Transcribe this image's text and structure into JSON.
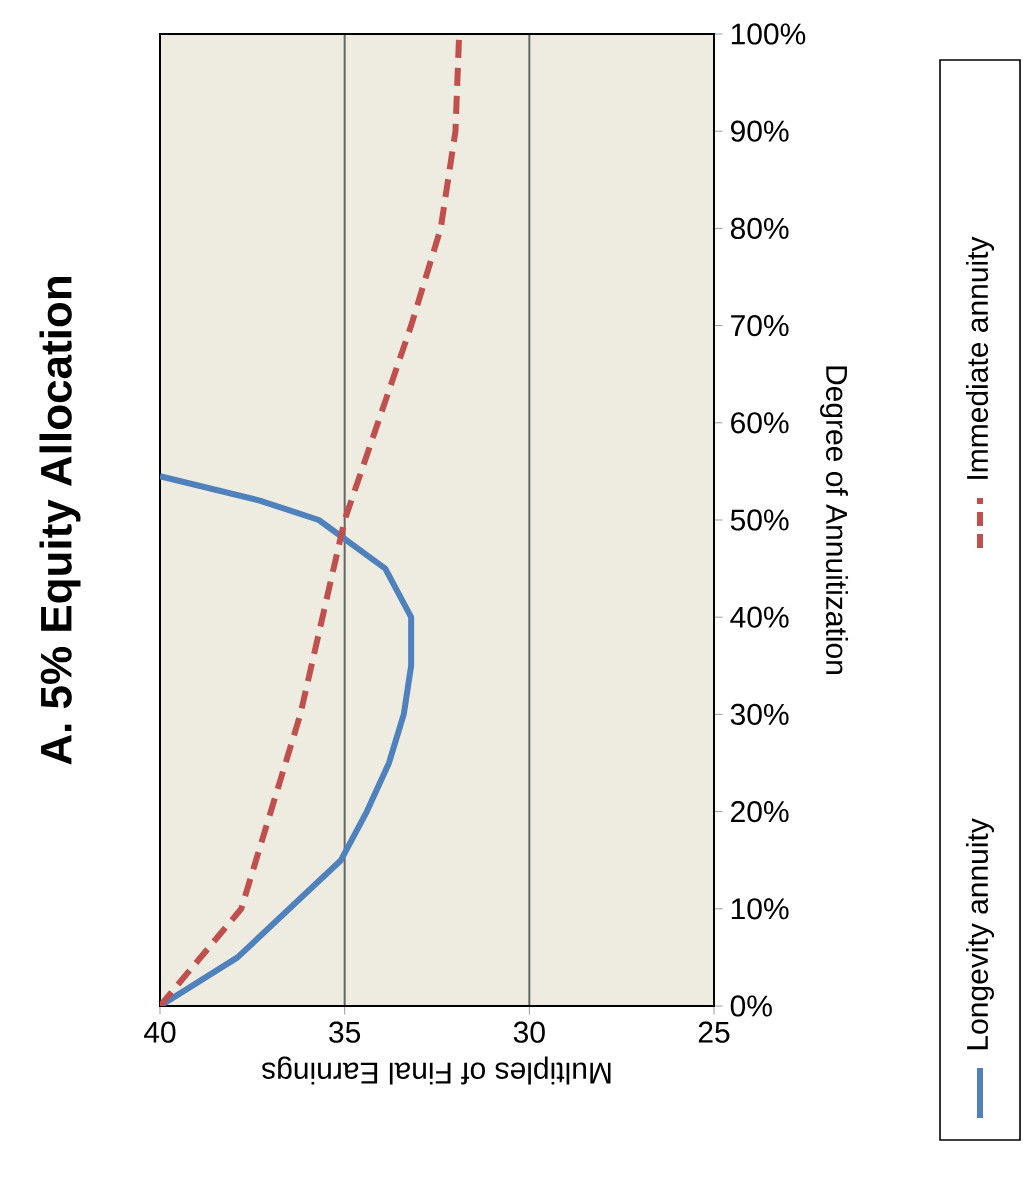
{
  "chart_data": {
    "type": "line",
    "title": "A. 5% Equity Allocation",
    "xlabel": "Multiples of Final Earnings",
    "ylabel": "Degree of Annuitization",
    "series": [
      {
        "name": "Longevity annuity",
        "color": "#4f81bd",
        "line_style": "solid",
        "x": [
          40,
          37.9,
          36.5,
          35.1,
          34.4,
          33.8,
          33.4,
          33.2,
          33.2,
          33.9,
          35.7,
          37.3,
          40
        ],
        "values": [
          0,
          5,
          10,
          15,
          20,
          25,
          30,
          35,
          40,
          45,
          50,
          52,
          54.5
        ]
      },
      {
        "name": "Immediate annuity",
        "color": "#c0504d",
        "line_style": "dashed",
        "x": [
          40,
          37.8,
          37.0,
          36.2,
          35.6,
          35.0,
          34.1,
          33.2,
          32.4,
          32.0,
          31.9
        ],
        "values": [
          0,
          10,
          20,
          30,
          40,
          50,
          60,
          70,
          80,
          90,
          100
        ]
      }
    ],
    "xlim": [
      40,
      25
    ],
    "ylim": [
      0,
      100
    ],
    "xticks": [
      25,
      30,
      35,
      40
    ],
    "yticks": [
      {
        "value": 0,
        "label": "0%"
      },
      {
        "value": 10,
        "label": "10%"
      },
      {
        "value": 20,
        "label": "20%"
      },
      {
        "value": 30,
        "label": "30%"
      },
      {
        "value": 40,
        "label": "40%"
      },
      {
        "value": 50,
        "label": "50%"
      },
      {
        "value": 60,
        "label": "60%"
      },
      {
        "value": 70,
        "label": "70%"
      },
      {
        "value": 80,
        "label": "80%"
      },
      {
        "value": 90,
        "label": "90%"
      },
      {
        "value": 100,
        "label": "100%"
      }
    ],
    "grid": "x",
    "legend": "right",
    "marker": "none"
  }
}
